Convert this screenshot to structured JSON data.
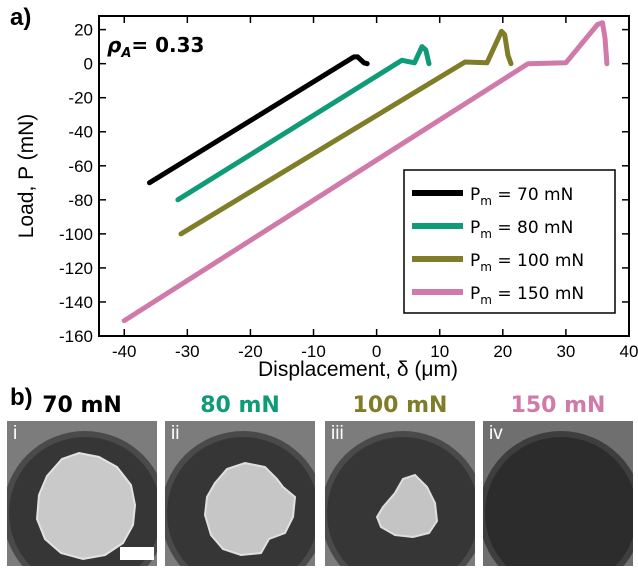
{
  "panel_labels": {
    "a": "a)",
    "b": "b)"
  },
  "chart_data": {
    "type": "line",
    "annotation": "= 0.33",
    "annotation_symbol": "ρ",
    "annotation_sub": "A",
    "xlabel": "Displacement, δ (μm)",
    "ylabel": "Load, P (mN)",
    "xlim": [
      -44,
      40
    ],
    "ylim": [
      -160,
      28
    ],
    "xticks": [
      -40,
      -30,
      -20,
      -10,
      0,
      10,
      20,
      30,
      40
    ],
    "yticks": [
      -160,
      -140,
      -120,
      -100,
      -80,
      -60,
      -40,
      -20,
      0,
      20
    ],
    "grid": false,
    "legend_position": "right",
    "series": [
      {
        "name": "P_m = 70 mN",
        "legend_main": "P",
        "legend_sub": "m",
        "legend_rest": " = 70 mN",
        "color": "#000000",
        "points": [
          [
            -36,
            -70
          ],
          [
            -3.6,
            4
          ],
          [
            -3,
            4
          ],
          [
            -2,
            0.5
          ],
          [
            -1.5,
            0
          ]
        ]
      },
      {
        "name": "P_m = 80 mN",
        "legend_main": "P",
        "legend_sub": "m",
        "legend_rest": " = 80 mN",
        "color": "#0f9a78",
        "points": [
          [
            -31.5,
            -80
          ],
          [
            4,
            2
          ],
          [
            6,
            0.5
          ],
          [
            7.2,
            10
          ],
          [
            7.8,
            8
          ],
          [
            8.3,
            0
          ]
        ]
      },
      {
        "name": "P_m = 100 mN",
        "legend_main": "P",
        "legend_sub": "m",
        "legend_rest": " = 100 mN",
        "color": "#807d29",
        "points": [
          [
            -31,
            -100
          ],
          [
            14,
            1
          ],
          [
            17.5,
            0.5
          ],
          [
            19.8,
            19
          ],
          [
            20.3,
            17
          ],
          [
            20.8,
            5
          ],
          [
            21.3,
            0
          ]
        ]
      },
      {
        "name": "P_m = 150 mN",
        "legend_main": "P",
        "legend_sub": "m",
        "legend_rest": " = 150 mN",
        "color": "#d07aaa",
        "points": [
          [
            -40,
            -151
          ],
          [
            24,
            0
          ],
          [
            30,
            0.5
          ],
          [
            35,
            23
          ],
          [
            35.8,
            24
          ],
          [
            36.2,
            15
          ],
          [
            36.5,
            0
          ]
        ]
      }
    ]
  },
  "micrographs": [
    {
      "title": "70 mN",
      "title_color": "#000000",
      "roman": "i",
      "spot": "large",
      "scale_bar": true
    },
    {
      "title": "80 mN",
      "title_color": "#0f9a78",
      "roman": "ii",
      "spot": "medium",
      "scale_bar": false
    },
    {
      "title": "100 mN",
      "title_color": "#807d29",
      "roman": "iii",
      "spot": "small",
      "scale_bar": false
    },
    {
      "title": "150 mN",
      "title_color": "#d07aaa",
      "roman": "iv",
      "spot": "none",
      "scale_bar": false
    }
  ]
}
